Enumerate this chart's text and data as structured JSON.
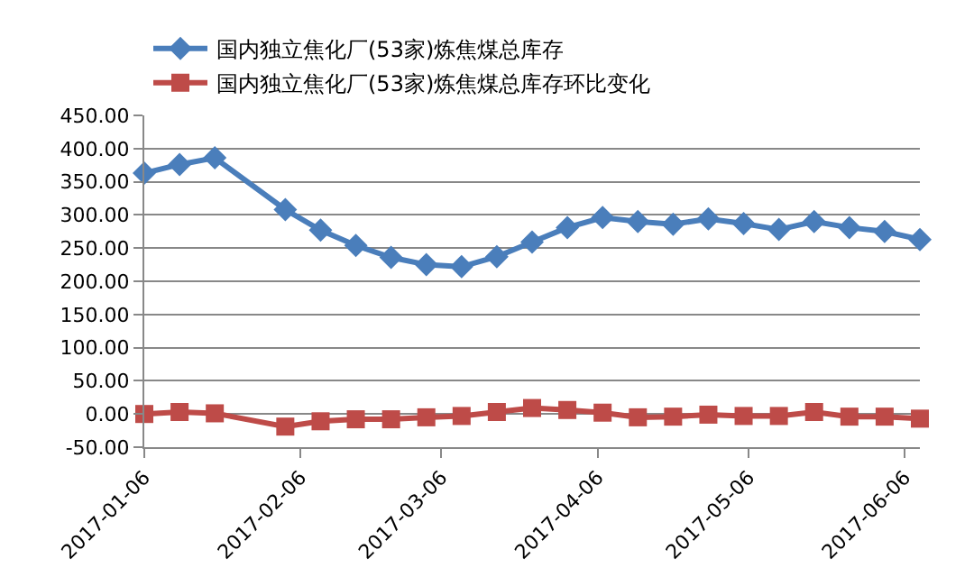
{
  "chart_data": {
    "type": "line",
    "x": [
      "2017-01-06",
      "2017-01-13",
      "2017-01-20",
      "2017-02-03",
      "2017-02-10",
      "2017-02-17",
      "2017-02-24",
      "2017-03-03",
      "2017-03-10",
      "2017-03-17",
      "2017-03-24",
      "2017-03-31",
      "2017-04-07",
      "2017-04-14",
      "2017-04-21",
      "2017-04-28",
      "2017-05-05",
      "2017-05-12",
      "2017-05-19",
      "2017-05-26",
      "2017-06-02",
      "2017-06-09"
    ],
    "series": [
      {
        "name": "国内独立焦化厂(53家)炼焦煤总库存",
        "color": "#4a7ebb",
        "marker": "diamond",
        "values": [
          363,
          376,
          386,
          308,
          277,
          254,
          236,
          225,
          222,
          237,
          259,
          281,
          296,
          290,
          286,
          294,
          287,
          278,
          290,
          281,
          275,
          263
        ]
      },
      {
        "name": "国内独立焦化厂(53家)炼焦煤总库存环比变化",
        "color": "#be4b48",
        "marker": "square",
        "values": [
          0,
          3,
          1,
          -19,
          -11,
          -8,
          -8,
          -5,
          -3,
          3,
          9,
          6,
          2,
          -5,
          -4,
          -1,
          -3,
          -3,
          3,
          -4,
          -4,
          -7
        ]
      }
    ],
    "xlim": [
      "2017-01-06",
      "2017-06-09"
    ],
    "xticks": [
      {
        "value": "2017-01-06",
        "label": "2017-01-06"
      },
      {
        "value": "2017-02-06",
        "label": "2017-02-06"
      },
      {
        "value": "2017-03-06",
        "label": "2017-03-06"
      },
      {
        "value": "2017-04-06",
        "label": "2017-04-06"
      },
      {
        "value": "2017-05-06",
        "label": "2017-05-06"
      },
      {
        "value": "2017-06-06",
        "label": "2017-06-06"
      }
    ],
    "ylim": [
      -50,
      450
    ],
    "yticks": [
      {
        "value": -50,
        "label": "-50.00"
      },
      {
        "value": 0,
        "label": "0.00"
      },
      {
        "value": 50,
        "label": "50.00"
      },
      {
        "value": 100,
        "label": "100.00"
      },
      {
        "value": 150,
        "label": "150.00"
      },
      {
        "value": 200,
        "label": "200.00"
      },
      {
        "value": 250,
        "label": "250.00"
      },
      {
        "value": 300,
        "label": "300.00"
      },
      {
        "value": 350,
        "label": "350.00"
      },
      {
        "value": 400,
        "label": "400.00"
      },
      {
        "value": 450,
        "label": "450.00"
      }
    ],
    "grid": "y",
    "legend": "top",
    "line_style": "solid"
  }
}
